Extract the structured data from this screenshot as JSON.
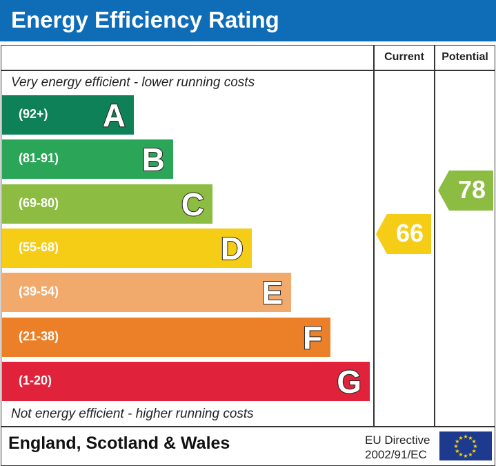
{
  "header": {
    "title": "Energy Efficiency Rating"
  },
  "columns": {
    "current": "Current",
    "potential": "Potential"
  },
  "notes": {
    "top": "Very energy efficient - lower running costs",
    "bottom": "Not energy efficient - higher running costs"
  },
  "chart_data": {
    "type": "bar",
    "categories": [
      "A",
      "B",
      "C",
      "D",
      "E",
      "F",
      "G"
    ],
    "ranges": [
      "(92+)",
      "(81-91)",
      "(69-80)",
      "(55-68)",
      "(39-54)",
      "(21-38)",
      "(1-20)"
    ],
    "colors": [
      "#0f8158",
      "#2ba557",
      "#8cbc42",
      "#f5cc16",
      "#f2aa6c",
      "#ec8028",
      "#e0223a"
    ],
    "current": {
      "value": 66,
      "label": "66",
      "band": "D",
      "color": "#f5cc16"
    },
    "potential": {
      "value": 78,
      "label": "78",
      "band": "C",
      "color": "#8cbc42"
    }
  },
  "footer": {
    "region": "England, Scotland & Wales",
    "directive_line1": "EU Directive",
    "directive_line2": "2002/91/EC",
    "flag": "eu-flag-icon"
  }
}
